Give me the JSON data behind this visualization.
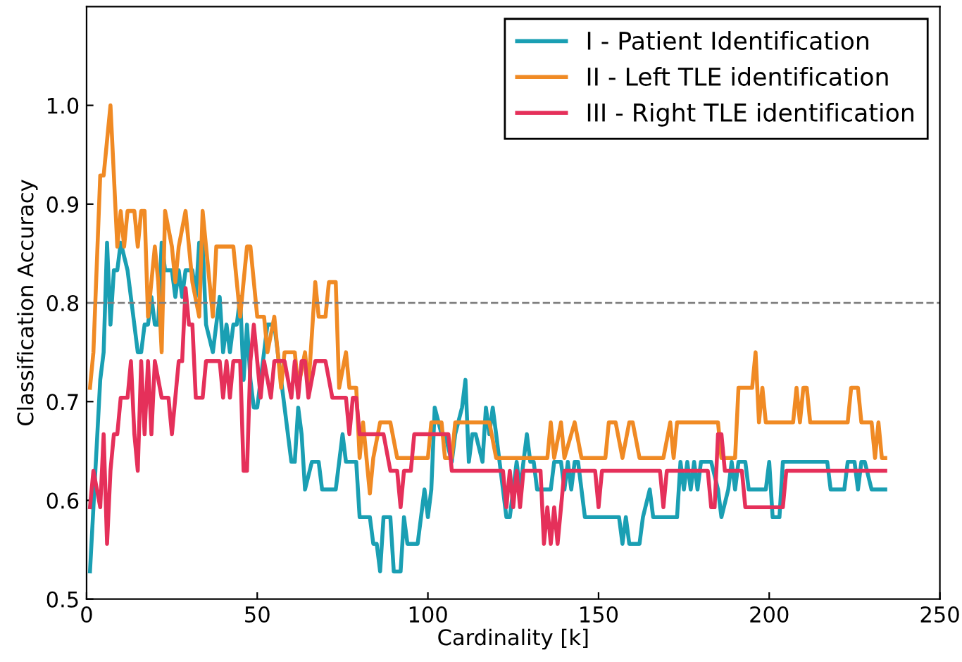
{
  "chart_data": {
    "type": "line",
    "xlabel": "Cardinality [k]",
    "ylabel": "Classification Accuracy",
    "xlim": [
      0,
      250
    ],
    "xticks": [
      0,
      50,
      100,
      150,
      200,
      250
    ],
    "ylim": [
      0.5,
      1.1
    ],
    "yticks": [
      0.5,
      0.6,
      0.7,
      0.8,
      0.9,
      {
        "value": 1.0,
        "label": "1.0"
      }
    ],
    "grid": false,
    "legend": "top right",
    "marker": "none",
    "line_style": "solid",
    "ref_lines": [
      {
        "axis": "y",
        "value": 0.8,
        "color": "#808080",
        "line_style": "dashed"
      }
    ],
    "series": [
      {
        "name": "I - Patient Identification",
        "color": "#1a9fb3",
        "x": [
          1,
          4,
          5,
          6,
          7,
          8,
          9,
          10,
          12,
          15,
          16,
          17,
          18,
          19,
          20,
          21,
          22,
          23,
          25,
          26,
          27,
          28,
          29,
          31,
          32,
          33,
          34,
          35,
          37,
          38,
          39,
          40,
          41,
          42,
          43,
          44,
          45,
          46,
          47,
          48,
          49,
          50,
          52,
          53,
          55,
          57,
          60,
          61,
          62,
          63,
          64,
          66,
          68,
          69,
          73,
          75,
          76,
          79,
          80,
          83,
          84,
          85,
          86,
          87,
          89,
          90,
          92,
          93,
          94,
          97,
          99,
          100,
          101,
          102,
          104,
          105,
          107,
          108,
          110,
          111,
          112,
          113,
          114,
          116,
          117,
          118,
          119,
          120,
          122,
          123,
          124,
          126,
          127,
          128,
          129,
          130,
          131,
          132,
          136,
          137,
          139,
          140,
          141,
          142,
          143,
          144,
          146,
          156,
          157,
          158,
          159,
          162,
          163,
          165,
          166,
          173,
          174,
          175,
          176,
          177,
          178,
          179,
          180,
          183,
          185,
          186,
          188,
          189,
          190,
          191,
          193,
          194,
          199,
          200,
          201,
          203,
          204,
          217,
          218,
          222,
          223,
          225,
          226,
          227,
          228,
          230,
          234
        ],
        "values": [
          0.528,
          0.722,
          0.75,
          0.861,
          0.778,
          0.833,
          0.833,
          0.861,
          0.833,
          0.75,
          0.75,
          0.778,
          0.778,
          0.806,
          0.778,
          0.778,
          0.861,
          0.833,
          0.833,
          0.806,
          0.833,
          0.806,
          0.833,
          0.833,
          0.806,
          0.861,
          0.861,
          0.778,
          0.75,
          0.778,
          0.806,
          0.75,
          0.778,
          0.75,
          0.778,
          0.778,
          0.806,
          0.722,
          0.778,
          0.722,
          0.694,
          0.694,
          0.75,
          0.778,
          0.778,
          0.722,
          0.639,
          0.639,
          0.694,
          0.667,
          0.611,
          0.639,
          0.639,
          0.611,
          0.611,
          0.667,
          0.639,
          0.639,
          0.583,
          0.583,
          0.556,
          0.556,
          0.528,
          0.583,
          0.583,
          0.528,
          0.528,
          0.583,
          0.556,
          0.556,
          0.611,
          0.583,
          0.611,
          0.694,
          0.667,
          0.667,
          0.639,
          0.667,
          0.694,
          0.722,
          0.639,
          0.667,
          0.667,
          0.639,
          0.694,
          0.667,
          0.694,
          0.667,
          0.611,
          0.583,
          0.583,
          0.639,
          0.611,
          0.639,
          0.667,
          0.639,
          0.639,
          0.611,
          0.611,
          0.639,
          0.639,
          0.611,
          0.639,
          0.611,
          0.639,
          0.639,
          0.583,
          0.583,
          0.556,
          0.583,
          0.556,
          0.556,
          0.583,
          0.611,
          0.583,
          0.583,
          0.639,
          0.611,
          0.639,
          0.611,
          0.639,
          0.611,
          0.639,
          0.639,
          0.611,
          0.583,
          0.611,
          0.639,
          0.611,
          0.639,
          0.639,
          0.611,
          0.611,
          0.639,
          0.583,
          0.583,
          0.639,
          0.639,
          0.611,
          0.611,
          0.639,
          0.639,
          0.611,
          0.639,
          0.639,
          0.611,
          0.611
        ]
      },
      {
        "name": "II - Left TLE identification",
        "color": "#f08a24",
        "x": [
          1,
          2,
          4,
          5,
          7,
          8,
          9,
          10,
          11,
          12,
          14,
          15,
          16,
          17,
          18,
          20,
          21,
          22,
          23,
          25,
          26,
          27,
          29,
          31,
          33,
          34,
          35,
          37,
          38,
          43,
          45,
          47,
          48,
          50,
          52,
          53,
          55,
          57,
          58,
          61,
          62,
          64,
          65,
          67,
          68,
          70,
          71,
          73,
          74,
          76,
          77,
          79,
          80,
          81,
          83,
          84,
          86,
          89,
          91,
          100,
          101,
          104,
          105,
          107,
          108,
          118,
          120,
          135,
          136,
          137,
          139,
          140,
          143,
          145,
          152,
          153,
          155,
          157,
          159,
          160,
          162,
          169,
          171,
          172,
          173,
          185,
          186,
          190,
          191,
          195,
          196,
          197,
          198,
          199,
          207,
          208,
          209,
          210,
          211,
          212,
          223,
          224,
          226,
          227,
          230,
          231,
          232,
          233,
          234
        ],
        "values": [
          0.714,
          0.75,
          0.929,
          0.929,
          1.0,
          0.929,
          0.857,
          0.893,
          0.857,
          0.893,
          0.893,
          0.857,
          0.893,
          0.893,
          0.786,
          0.857,
          0.821,
          0.75,
          0.893,
          0.857,
          0.821,
          0.857,
          0.893,
          0.821,
          0.786,
          0.893,
          0.857,
          0.786,
          0.857,
          0.857,
          0.786,
          0.857,
          0.857,
          0.786,
          0.786,
          0.75,
          0.786,
          0.714,
          0.75,
          0.75,
          0.714,
          0.75,
          0.714,
          0.821,
          0.786,
          0.786,
          0.821,
          0.821,
          0.714,
          0.75,
          0.714,
          0.714,
          0.643,
          0.679,
          0.607,
          0.643,
          0.679,
          0.679,
          0.643,
          0.643,
          0.679,
          0.679,
          0.643,
          0.643,
          0.679,
          0.679,
          0.643,
          0.643,
          0.679,
          0.643,
          0.679,
          0.643,
          0.679,
          0.643,
          0.643,
          0.679,
          0.679,
          0.643,
          0.679,
          0.679,
          0.643,
          0.643,
          0.679,
          0.643,
          0.679,
          0.679,
          0.643,
          0.643,
          0.714,
          0.714,
          0.75,
          0.679,
          0.714,
          0.679,
          0.679,
          0.714,
          0.679,
          0.714,
          0.714,
          0.679,
          0.679,
          0.714,
          0.714,
          0.679,
          0.679,
          0.643,
          0.679,
          0.643,
          0.643
        ]
      },
      {
        "name": "III - Right TLE identification",
        "color": "#e5305a",
        "x": [
          1,
          2,
          4,
          5,
          6,
          7,
          8,
          9,
          10,
          12,
          13,
          14,
          15,
          16,
          17,
          18,
          19,
          20,
          22,
          24,
          25,
          26,
          27,
          28,
          29,
          30,
          31,
          32,
          34,
          35,
          39,
          40,
          41,
          42,
          43,
          45,
          46,
          47,
          48,
          49,
          51,
          52,
          54,
          55,
          58,
          60,
          61,
          62,
          63,
          64,
          65,
          67,
          70,
          72,
          76,
          77,
          78,
          79,
          80,
          87,
          89,
          91,
          92,
          93,
          95,
          96,
          106,
          107,
          122,
          123,
          124,
          125,
          126,
          127,
          128,
          133,
          134,
          135,
          136,
          137,
          138,
          140,
          149,
          150,
          151,
          168,
          169,
          170,
          182,
          183,
          184,
          185,
          186,
          187,
          192,
          193,
          204,
          205,
          234
        ],
        "values": [
          0.593,
          0.63,
          0.593,
          0.667,
          0.556,
          0.63,
          0.667,
          0.667,
          0.704,
          0.704,
          0.741,
          0.667,
          0.63,
          0.741,
          0.667,
          0.741,
          0.667,
          0.741,
          0.704,
          0.704,
          0.667,
          0.704,
          0.741,
          0.741,
          0.815,
          0.778,
          0.778,
          0.704,
          0.704,
          0.741,
          0.741,
          0.704,
          0.741,
          0.704,
          0.741,
          0.741,
          0.63,
          0.63,
          0.741,
          0.778,
          0.704,
          0.741,
          0.704,
          0.741,
          0.741,
          0.704,
          0.741,
          0.704,
          0.741,
          0.741,
          0.704,
          0.741,
          0.741,
          0.704,
          0.704,
          0.667,
          0.704,
          0.704,
          0.667,
          0.667,
          0.63,
          0.63,
          0.593,
          0.63,
          0.63,
          0.667,
          0.667,
          0.63,
          0.63,
          0.593,
          0.63,
          0.593,
          0.63,
          0.593,
          0.63,
          0.63,
          0.556,
          0.593,
          0.556,
          0.593,
          0.556,
          0.63,
          0.63,
          0.593,
          0.63,
          0.63,
          0.593,
          0.63,
          0.63,
          0.593,
          0.593,
          0.667,
          0.667,
          0.63,
          0.63,
          0.593,
          0.593,
          0.63,
          0.63
        ]
      }
    ]
  }
}
